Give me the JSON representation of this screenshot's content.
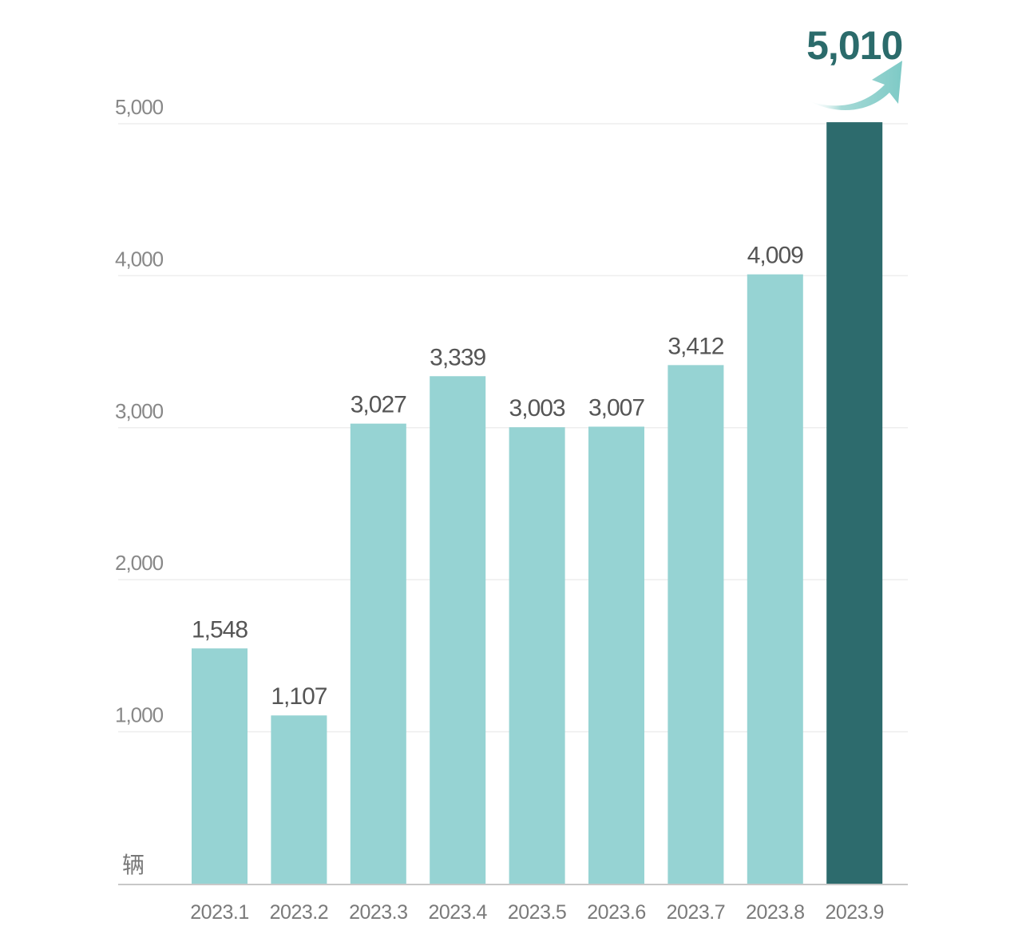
{
  "chart_data": {
    "type": "bar",
    "categories": [
      "2023.1",
      "2023.2",
      "2023.3",
      "2023.4",
      "2023.5",
      "2023.6",
      "2023.7",
      "2023.8",
      "2023.9"
    ],
    "values": [
      1548,
      1107,
      3027,
      3339,
      3003,
      3007,
      3412,
      4009,
      5010
    ],
    "value_labels": [
      "1,548",
      "1,107",
      "3,027",
      "3,339",
      "3,003",
      "3,007",
      "3,412",
      "4,009",
      "5,010"
    ],
    "highlighted_category": "2023.9",
    "ylabel": "辆",
    "ylim": [
      0,
      5000
    ],
    "yticks": [
      1000,
      2000,
      3000,
      4000,
      5000
    ],
    "ytick_labels": [
      "1,000",
      "2,000",
      "3,000",
      "4,000",
      "5,000"
    ],
    "grid": true,
    "legend": "none",
    "colors": {
      "bar": "#96d3d3",
      "highlight_bar": "#2d6b6d",
      "highlight_label": "#2b6b6b",
      "arrow": "#8fd0cc",
      "grid": "#eeeeee",
      "axis": "#c8c8c8"
    }
  }
}
